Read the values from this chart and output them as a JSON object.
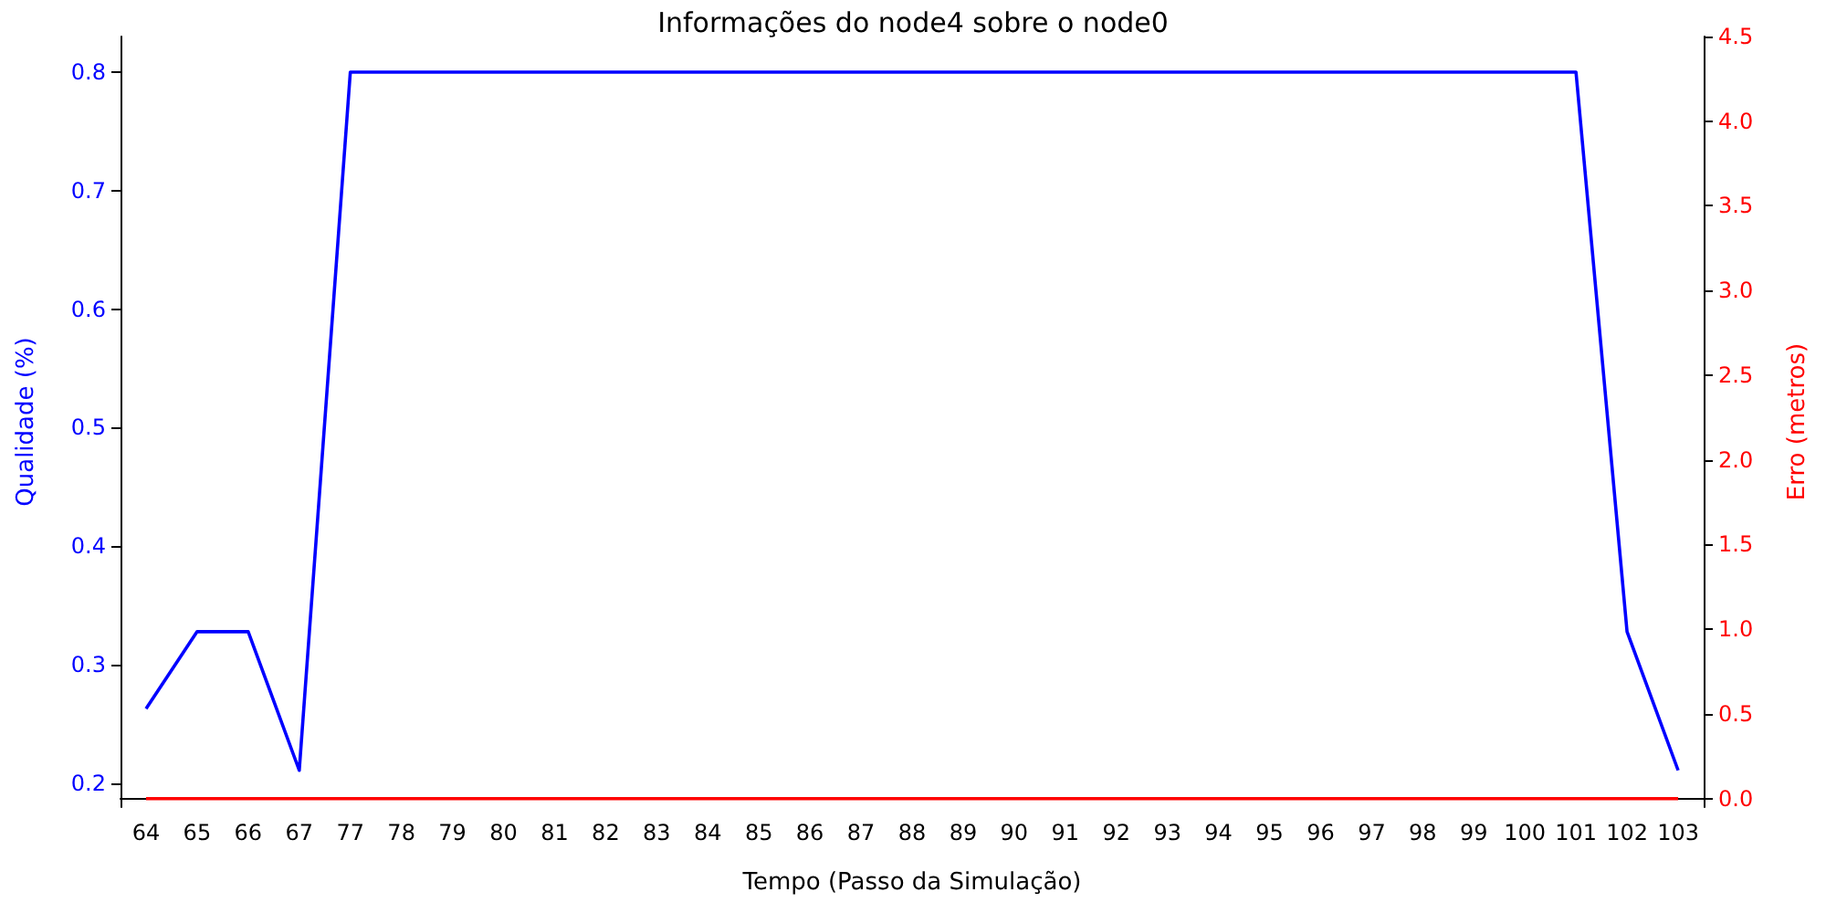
{
  "chart_data": {
    "type": "line",
    "title": "Informações do node4 sobre o node0",
    "xlabel": "Tempo (Passo da Simulação)",
    "ylabel": "Qualidade (%)",
    "y2label": "Erro (metros)",
    "categories": [
      "64",
      "65",
      "66",
      "67",
      "77",
      "78",
      "79",
      "80",
      "81",
      "82",
      "83",
      "84",
      "85",
      "86",
      "87",
      "88",
      "89",
      "90",
      "91",
      "92",
      "93",
      "94",
      "95",
      "96",
      "97",
      "98",
      "99",
      "100",
      "101",
      "102",
      "103"
    ],
    "series": [
      {
        "color": "#0000ff",
        "values": [
          0.263,
          0.328,
          0.328,
          0.211,
          0.8,
          0.8,
          0.8,
          0.8,
          0.8,
          0.8,
          0.8,
          0.8,
          0.8,
          0.8,
          0.8,
          0.8,
          0.8,
          0.8,
          0.8,
          0.8,
          0.8,
          0.8,
          0.8,
          0.8,
          0.8,
          0.8,
          0.8,
          0.8,
          0.8,
          0.328,
          0.211
        ]
      },
      {
        "color": "#ff0000",
        "axis": "y2",
        "values": [
          0,
          0,
          0,
          0,
          0,
          0,
          0,
          0,
          0,
          0,
          0,
          0,
          0,
          0,
          0,
          0,
          0,
          0,
          0,
          0,
          0,
          0,
          0,
          0,
          0,
          0,
          0,
          0,
          0,
          0,
          0
        ]
      }
    ],
    "ylim": [
      0.18,
      0.83
    ],
    "yticks": [
      0.2,
      0.3,
      0.4,
      0.5,
      0.6,
      0.7,
      0.8
    ],
    "y2lim": [
      -0.05,
      4.5
    ],
    "y2ticks": [
      {
        "value": 0,
        "label": "0.0"
      },
      0.5,
      {
        "value": 1,
        "label": "1.0"
      },
      1.5,
      {
        "value": 2,
        "label": "2.0"
      },
      2.5,
      {
        "value": 3,
        "label": "3.0"
      },
      3.5,
      {
        "value": 4,
        "label": "4.0"
      },
      4.5
    ],
    "grid": false,
    "marker": "none",
    "line_style": "solid"
  }
}
